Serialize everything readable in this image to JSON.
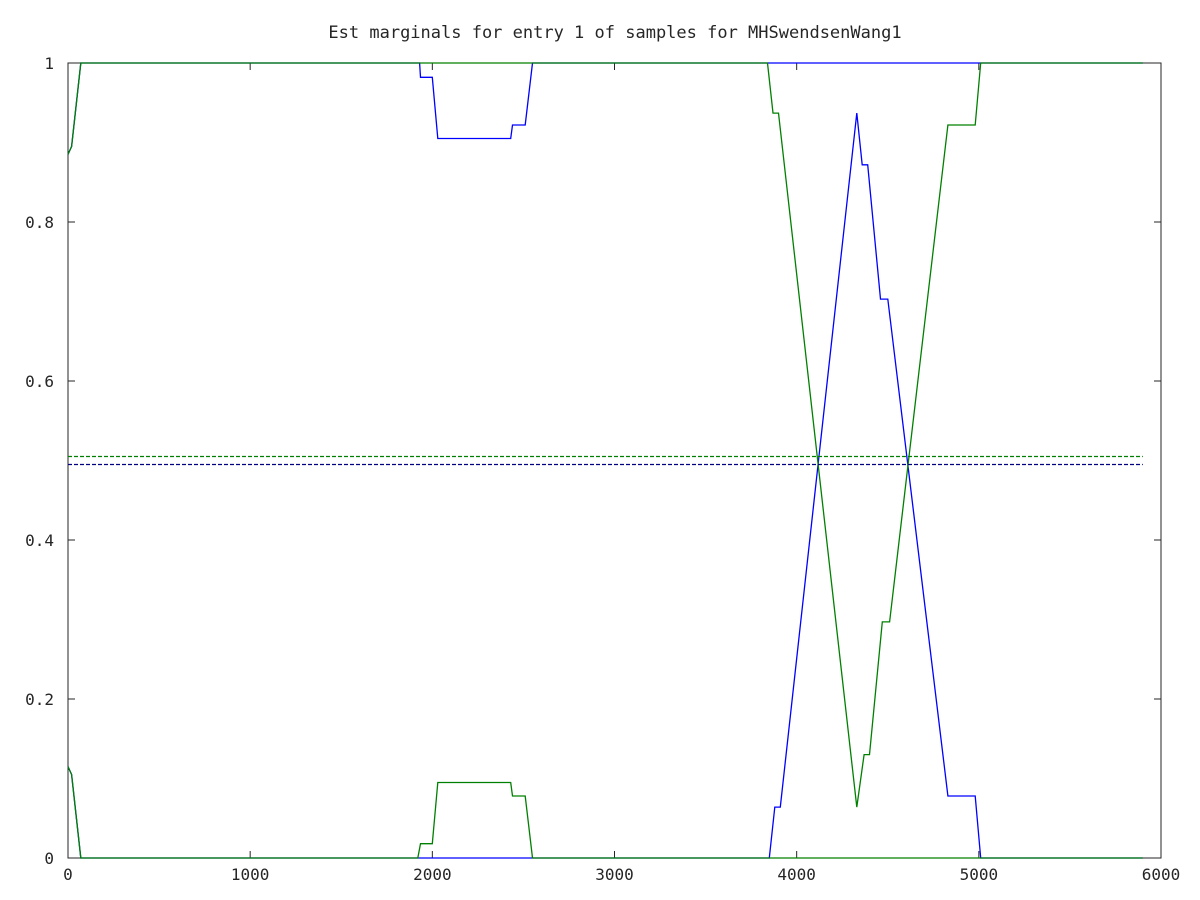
{
  "chart_data": {
    "type": "line",
    "title": "Est marginals for entry 1 of samples for MHSwendsenWang1",
    "xlabel": "",
    "ylabel": "",
    "xlim": [
      0,
      6000
    ],
    "ylim": [
      0,
      1
    ],
    "x_ticks": [
      "0",
      "1000",
      "2000",
      "3000",
      "4000",
      "5000",
      "6000"
    ],
    "y_ticks": [
      "0",
      "0.2",
      "0.4",
      "0.6",
      "0.8",
      "1"
    ],
    "grid": false,
    "legend": "none",
    "series": [
      {
        "color": "#0000ff",
        "style": "solid",
        "points": [
          [
            0,
            0.885
          ],
          [
            20,
            0.895
          ],
          [
            70,
            1.0
          ],
          [
            1930,
            1.0
          ],
          [
            1935,
            0.982
          ],
          [
            2000,
            0.982
          ],
          [
            2030,
            0.905
          ],
          [
            2430,
            0.905
          ],
          [
            2440,
            0.922
          ],
          [
            2510,
            0.922
          ],
          [
            2550,
            1.0
          ],
          [
            5900,
            1.0
          ]
        ]
      },
      {
        "color": "#0000ff",
        "style": "solid",
        "points": [
          [
            0,
            0.115
          ],
          [
            20,
            0.105
          ],
          [
            70,
            0.0
          ],
          [
            3850,
            0.0
          ],
          [
            3880,
            0.064
          ],
          [
            3910,
            0.064
          ],
          [
            4330,
            0.937
          ],
          [
            4360,
            0.872
          ],
          [
            4390,
            0.872
          ],
          [
            4460,
            0.703
          ],
          [
            4500,
            0.703
          ],
          [
            4830,
            0.078
          ],
          [
            4980,
            0.078
          ],
          [
            5010,
            0.0
          ],
          [
            5900,
            0.0
          ]
        ]
      },
      {
        "color": "#008000",
        "style": "solid",
        "points": [
          [
            0,
            0.885
          ],
          [
            20,
            0.895
          ],
          [
            70,
            1.0
          ],
          [
            3840,
            1.0
          ],
          [
            3870,
            0.937
          ],
          [
            3900,
            0.937
          ],
          [
            4330,
            0.064
          ],
          [
            4370,
            0.13
          ],
          [
            4400,
            0.13
          ],
          [
            4470,
            0.297
          ],
          [
            4510,
            0.297
          ],
          [
            4830,
            0.922
          ],
          [
            4980,
            0.922
          ],
          [
            5010,
            1.0
          ],
          [
            5900,
            1.0
          ]
        ]
      },
      {
        "color": "#008000",
        "style": "solid",
        "points": [
          [
            0,
            0.115
          ],
          [
            20,
            0.105
          ],
          [
            70,
            0.0
          ],
          [
            1920,
            0.0
          ],
          [
            1935,
            0.018
          ],
          [
            2000,
            0.018
          ],
          [
            2030,
            0.095
          ],
          [
            2430,
            0.095
          ],
          [
            2440,
            0.078
          ],
          [
            2510,
            0.078
          ],
          [
            2550,
            0.0
          ],
          [
            5900,
            0.0
          ]
        ]
      },
      {
        "color": "#008000",
        "style": "dashed",
        "points": [
          [
            0,
            0.505
          ],
          [
            5900,
            0.505
          ]
        ]
      },
      {
        "color": "#000080",
        "style": "dashed",
        "points": [
          [
            0,
            0.495
          ],
          [
            5900,
            0.495
          ]
        ]
      }
    ]
  }
}
